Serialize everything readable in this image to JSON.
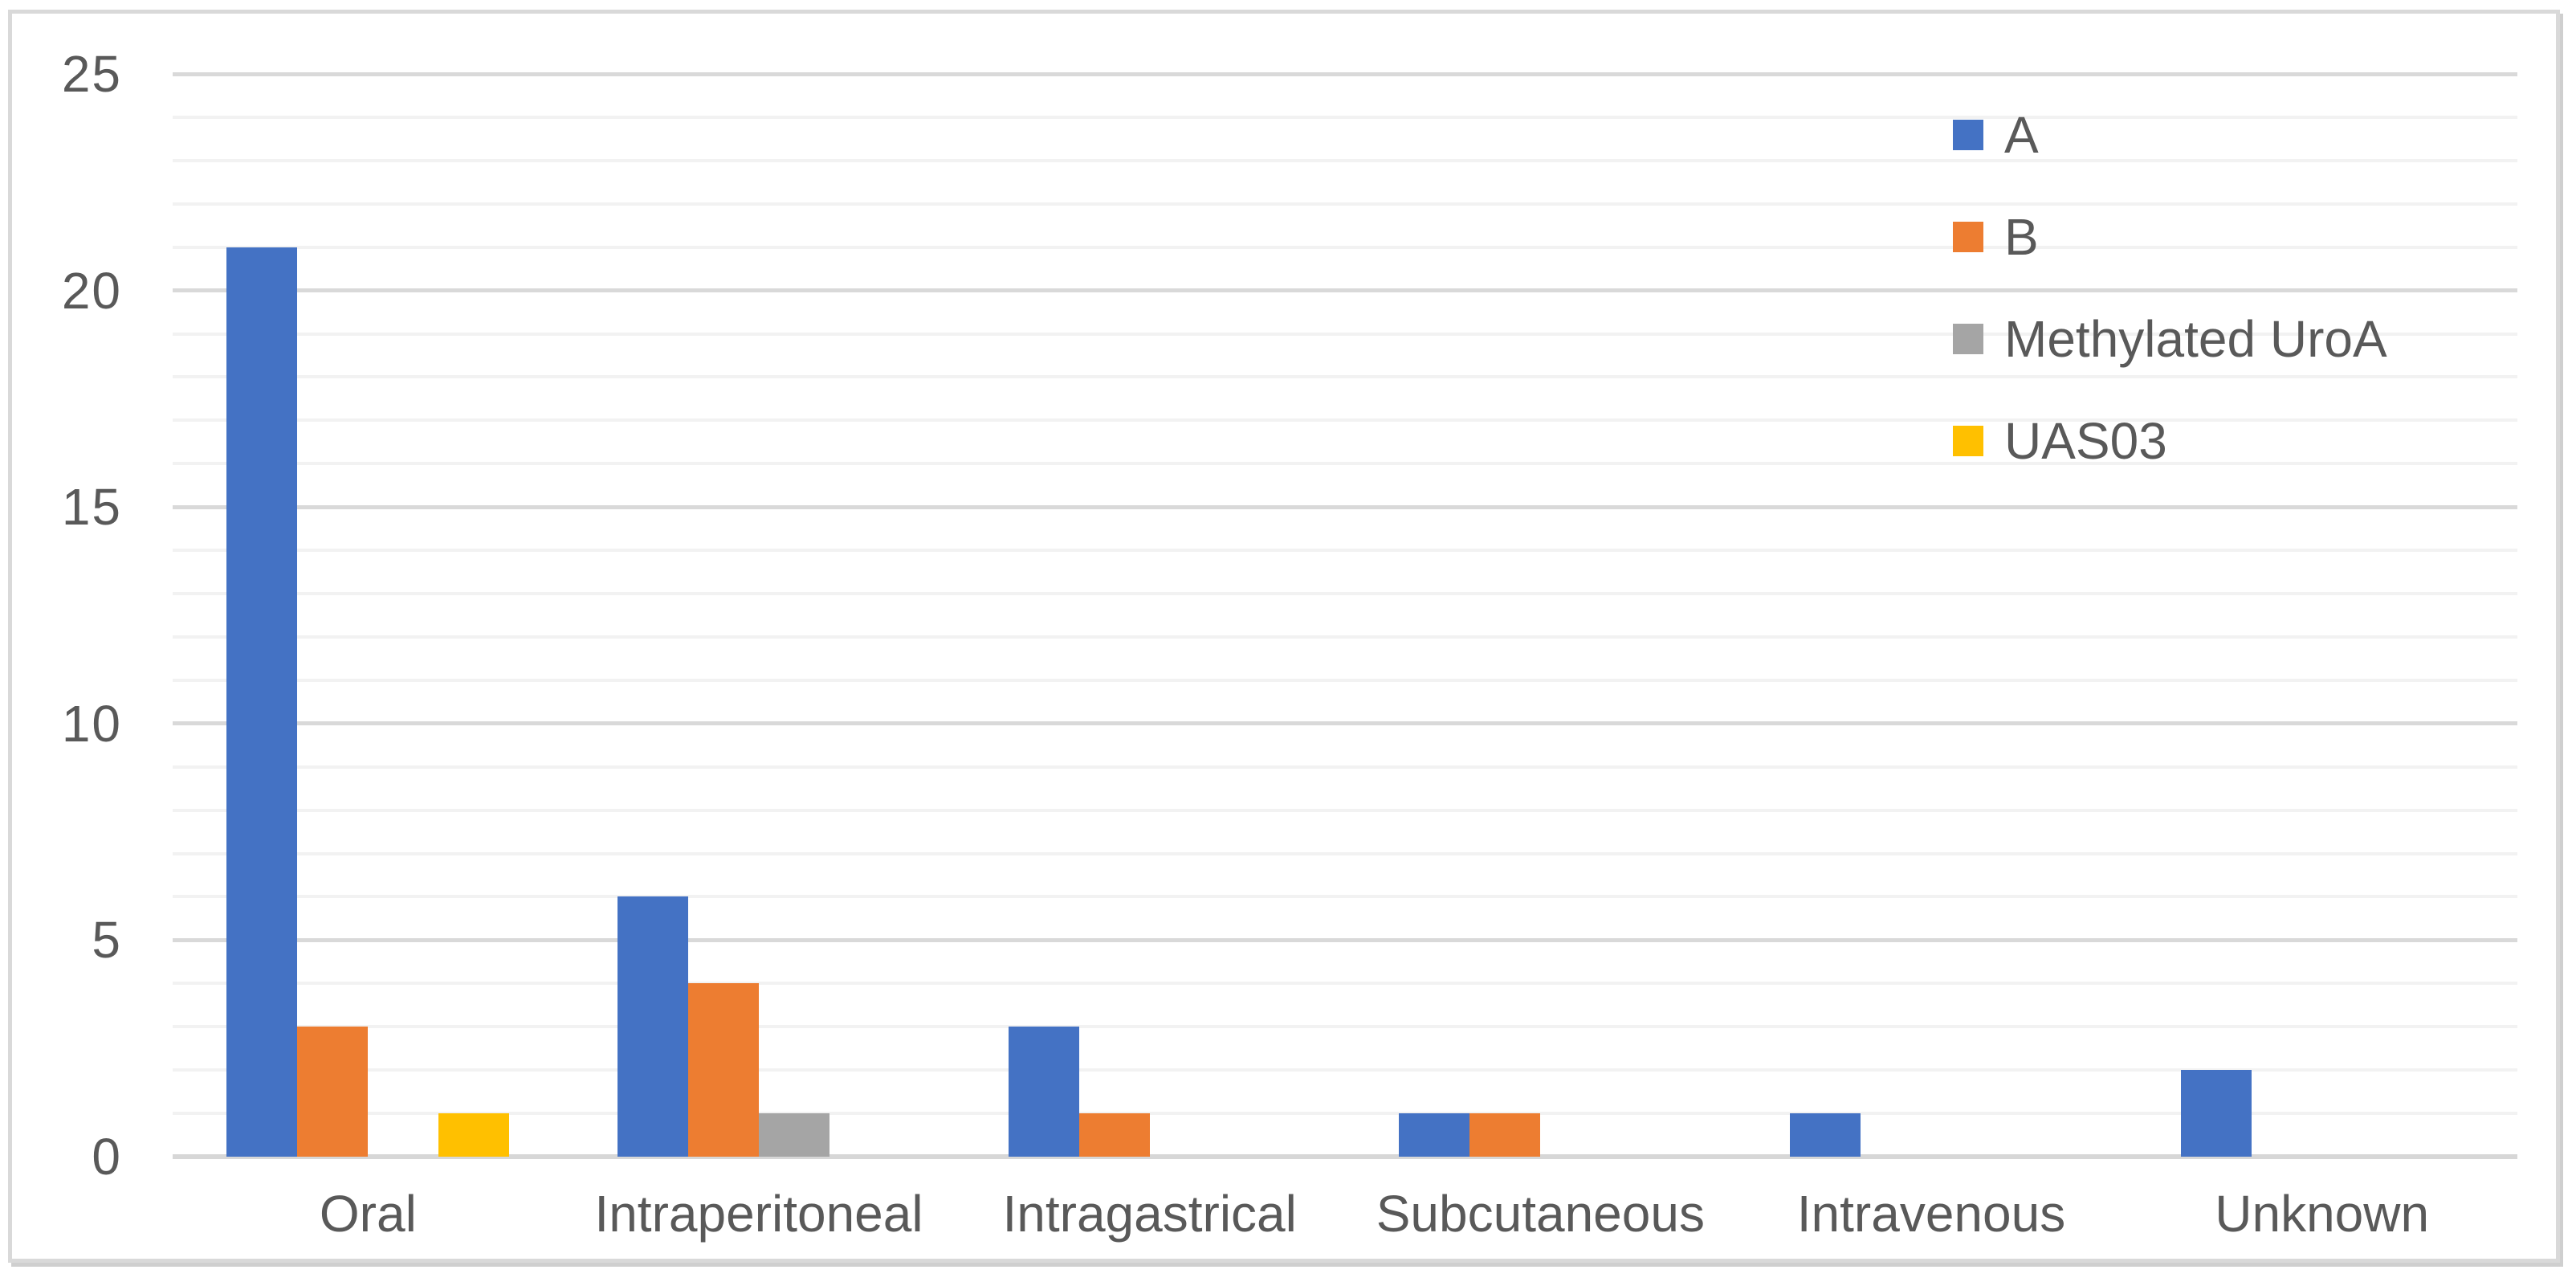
{
  "chart_data": {
    "type": "bar",
    "title": "",
    "xlabel": "",
    "ylabel": "",
    "categories": [
      "Oral",
      "Intraperitoneal",
      "Intragastrical",
      "Subcutaneous",
      "Intravenous",
      "Unknown"
    ],
    "series": [
      {
        "name": "A",
        "color": "#4472C4",
        "values": [
          21,
          6,
          3,
          1,
          1,
          2
        ]
      },
      {
        "name": "B",
        "color": "#ED7D31",
        "values": [
          3,
          4,
          1,
          1,
          0,
          0
        ]
      },
      {
        "name": "Methylated UroA",
        "color": "#A5A5A5",
        "values": [
          0,
          1,
          0,
          0,
          0,
          0
        ]
      },
      {
        "name": "UAS03",
        "color": "#FFC000",
        "values": [
          1,
          0,
          0,
          0,
          0,
          0
        ]
      }
    ],
    "ylim": [
      0,
      25
    ],
    "ytick_step": 5,
    "minor_grid_step": 1,
    "yticks": [
      "0",
      "5",
      "10",
      "15",
      "20",
      "25"
    ],
    "grid": true,
    "legend_position": "top-right"
  },
  "colors": {
    "background": "#FFFFFF",
    "frame_border": "#D9D9D9",
    "major_gridline": "#D9D9D9",
    "minor_gridline": "#F2F2F2",
    "axis_line": "#D7D7D7",
    "label_text": "#595959"
  }
}
